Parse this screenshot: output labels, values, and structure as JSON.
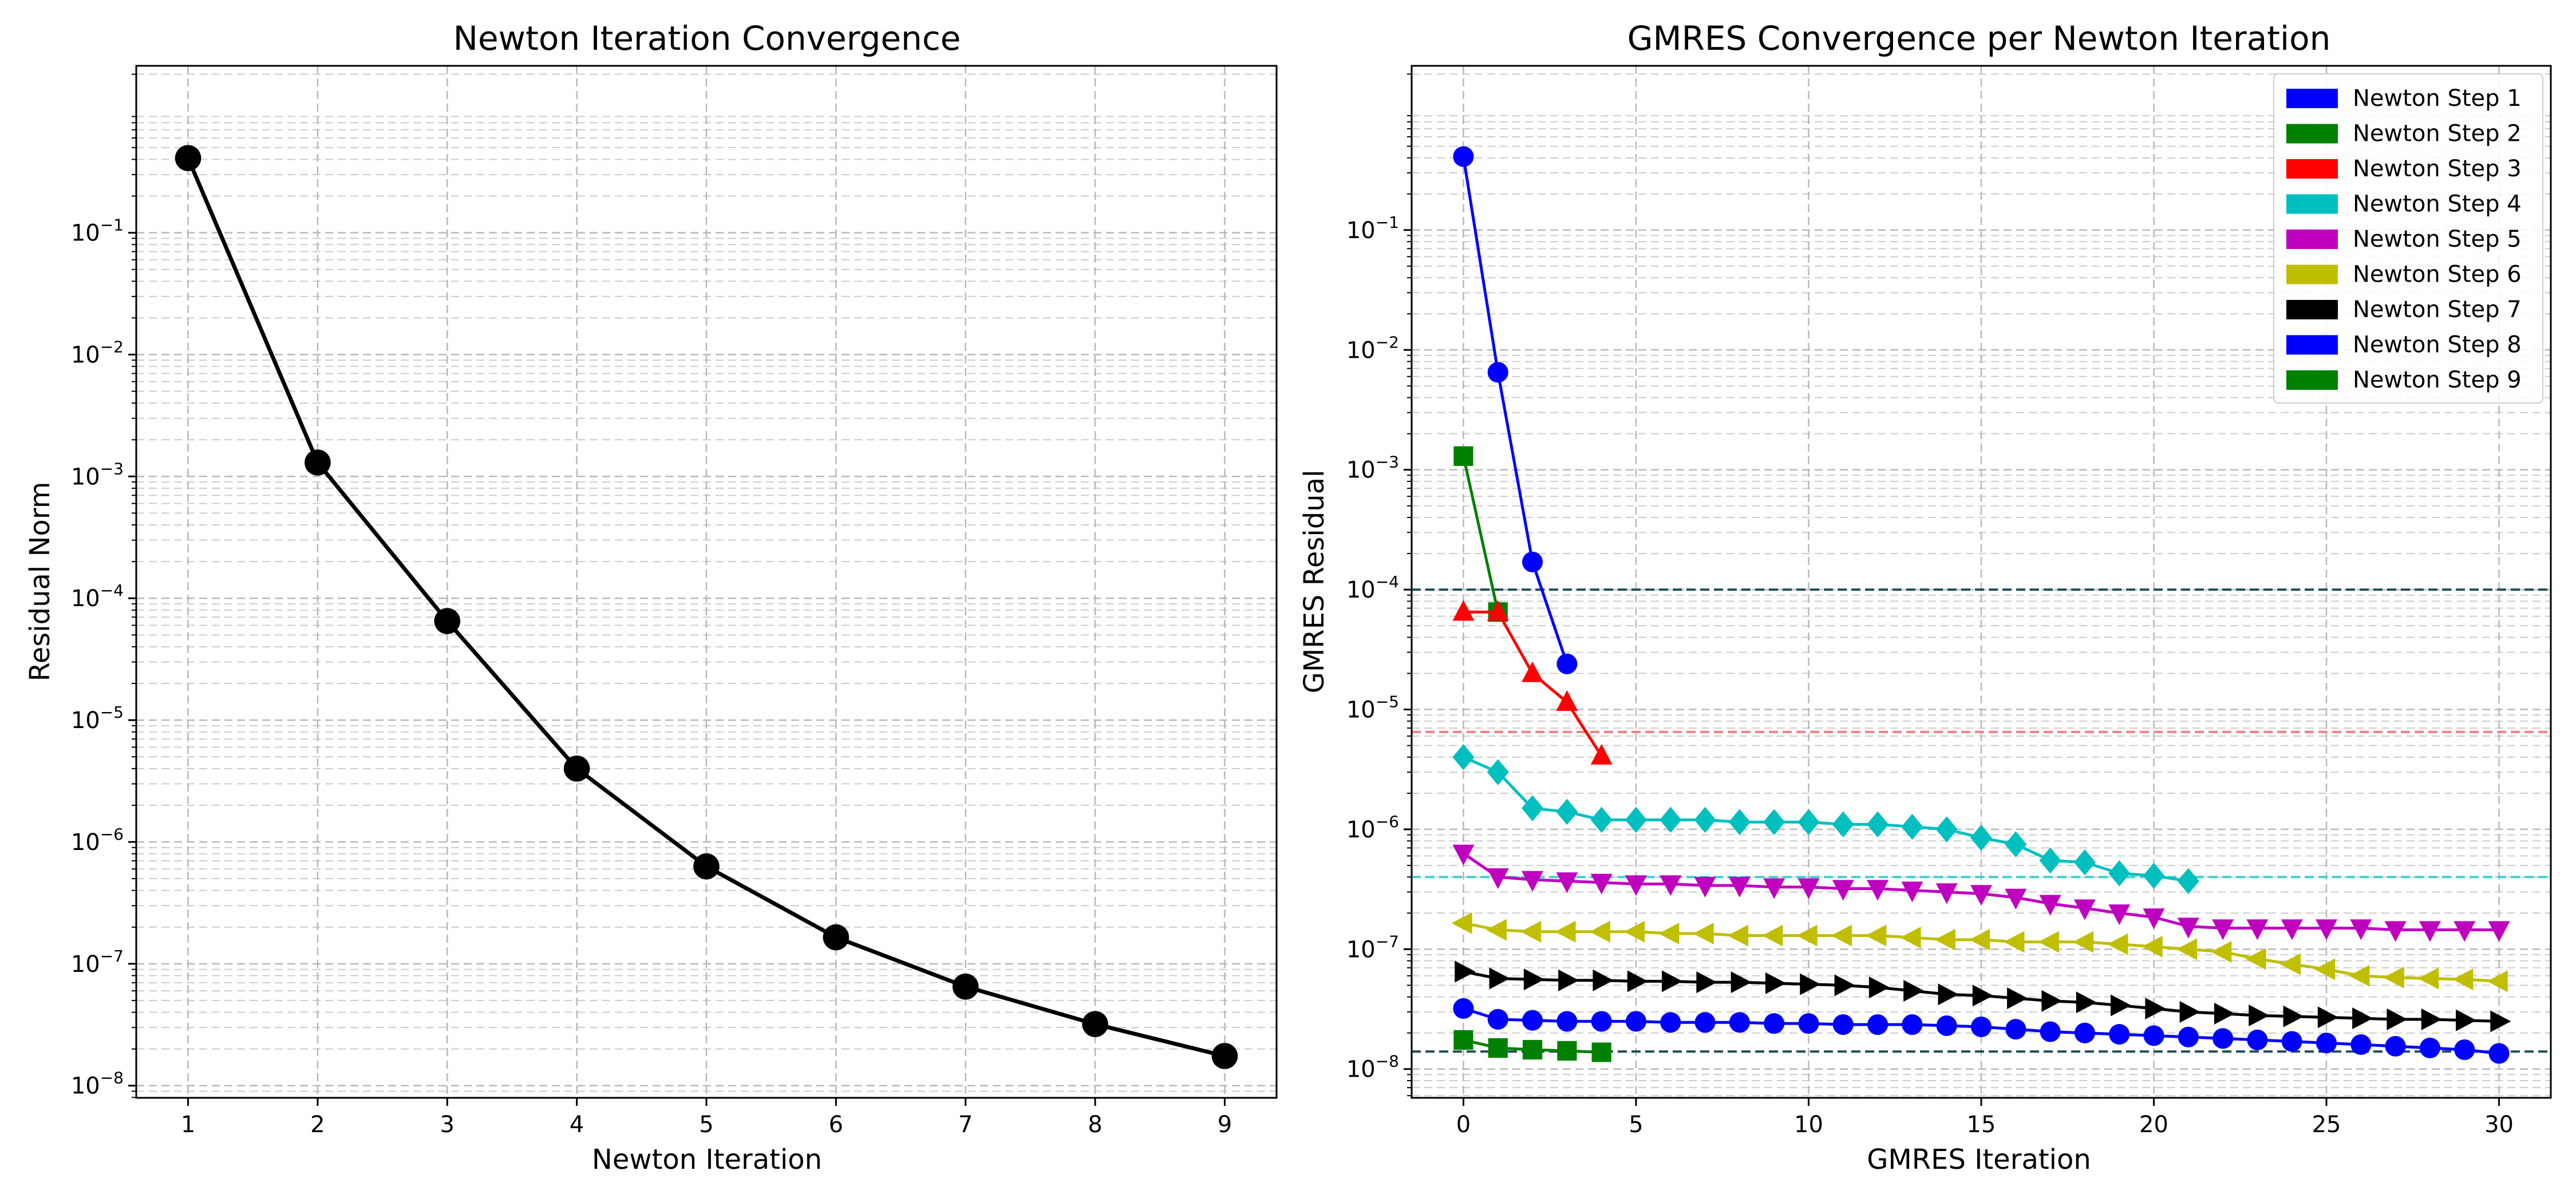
{
  "chart_data": [
    {
      "type": "line",
      "title": "Newton Iteration Convergence",
      "xlabel": "Newton Iteration",
      "ylabel": "Residual Norm",
      "xlim": [
        0.6,
        9.4
      ],
      "ylim_log10": [
        -8.1,
        0.37
      ],
      "yscale": "log",
      "grid": true,
      "x": [
        1,
        2,
        3,
        4,
        5,
        6,
        7,
        8,
        9
      ],
      "xticks": [
        1,
        2,
        3,
        4,
        5,
        6,
        7,
        8,
        9
      ],
      "yticks_exp": [
        -8,
        -7,
        -6,
        -5,
        -4,
        -3,
        -2,
        -1
      ],
      "series": [
        {
          "color": "#000000",
          "marker": "circle",
          "values": [
            0.41,
            0.0013,
            6.5e-05,
            4e-06,
            6.3e-07,
            1.65e-07,
            6.5e-08,
            3.2e-08,
            1.75e-08
          ]
        }
      ]
    },
    {
      "type": "line",
      "title": "GMRES Convergence per Newton Iteration",
      "xlabel": "GMRES Iteration",
      "ylabel": "GMRES Residual",
      "xlim": [
        -1.5,
        31.5
      ],
      "ylim_log10": [
        -8.24,
        0.37
      ],
      "yscale": "log",
      "grid": true,
      "legend": "top-right",
      "xticks": [
        0,
        5,
        10,
        15,
        20,
        25,
        30
      ],
      "yticks_exp": [
        -8,
        -7,
        -6,
        -5,
        -4,
        -3,
        -2,
        -1
      ],
      "hlines": [
        {
          "y": 0.0001,
          "color": "#1f4f55"
        },
        {
          "y": 6.5e-06,
          "color": "#f08080"
        },
        {
          "y": 4e-07,
          "color": "#40d0d0"
        },
        {
          "y": 1.4e-08,
          "color": "#1f4f55"
        }
      ],
      "series": [
        {
          "name": "Newton Step 1",
          "color": "#0000ff",
          "marker": "circle",
          "values": [
            0.41,
            0.0065,
            0.00017,
            2.4e-05
          ]
        },
        {
          "name": "Newton Step 2",
          "color": "#008000",
          "marker": "square",
          "values": [
            0.0013,
            6.5e-05
          ]
        },
        {
          "name": "Newton Step 3",
          "color": "#ff0000",
          "marker": "triangle-up",
          "values": [
            6.5e-05,
            6.5e-05,
            2e-05,
            1.15e-05,
            4.1e-06
          ]
        },
        {
          "name": "Newton Step 4",
          "color": "#00bfbf",
          "marker": "diamond",
          "values": [
            4e-06,
            3e-06,
            1.5e-06,
            1.4e-06,
            1.2e-06,
            1.2e-06,
            1.2e-06,
            1.2e-06,
            1.15e-06,
            1.15e-06,
            1.15e-06,
            1.1e-06,
            1.1e-06,
            1.05e-06,
            1e-06,
            8.5e-07,
            7.5e-07,
            5.5e-07,
            5.3e-07,
            4.3e-07,
            4.1e-07,
            3.7e-07
          ]
        },
        {
          "name": "Newton Step 5",
          "color": "#bf00bf",
          "marker": "triangle-down",
          "values": [
            6.3e-07,
            4e-07,
            3.8e-07,
            3.7e-07,
            3.6e-07,
            3.5e-07,
            3.5e-07,
            3.4e-07,
            3.4e-07,
            3.3e-07,
            3.3e-07,
            3.2e-07,
            3.2e-07,
            3.1e-07,
            3e-07,
            2.9e-07,
            2.7e-07,
            2.4e-07,
            2.2e-07,
            2e-07,
            1.85e-07,
            1.55e-07,
            1.5e-07,
            1.5e-07,
            1.5e-07,
            1.5e-07,
            1.5e-07,
            1.45e-07,
            1.45e-07,
            1.45e-07,
            1.45e-07
          ]
        },
        {
          "name": "Newton Step 6",
          "color": "#bfbf00",
          "marker": "triangle-left",
          "values": [
            1.65e-07,
            1.45e-07,
            1.4e-07,
            1.4e-07,
            1.4e-07,
            1.4e-07,
            1.35e-07,
            1.35e-07,
            1.3e-07,
            1.3e-07,
            1.3e-07,
            1.3e-07,
            1.3e-07,
            1.25e-07,
            1.2e-07,
            1.2e-07,
            1.15e-07,
            1.15e-07,
            1.15e-07,
            1.1e-07,
            1.05e-07,
            1e-07,
            9.5e-08,
            8.3e-08,
            7.5e-08,
            6.8e-08,
            6e-08,
            5.8e-08,
            5.7e-08,
            5.6e-08,
            5.4e-08
          ]
        },
        {
          "name": "Newton Step 7",
          "color": "#000000",
          "marker": "triangle-right",
          "values": [
            6.5e-08,
            5.7e-08,
            5.6e-08,
            5.5e-08,
            5.5e-08,
            5.4e-08,
            5.4e-08,
            5.3e-08,
            5.3e-08,
            5.2e-08,
            5.1e-08,
            5e-08,
            4.8e-08,
            4.5e-08,
            4.2e-08,
            4.1e-08,
            3.9e-08,
            3.7e-08,
            3.6e-08,
            3.4e-08,
            3.2e-08,
            3e-08,
            2.9e-08,
            2.8e-08,
            2.75e-08,
            2.7e-08,
            2.65e-08,
            2.6e-08,
            2.6e-08,
            2.55e-08,
            2.5e-08
          ]
        },
        {
          "name": "Newton Step 8",
          "color": "#0000ff",
          "marker": "circle",
          "values": [
            3.2e-08,
            2.6e-08,
            2.55e-08,
            2.5e-08,
            2.5e-08,
            2.5e-08,
            2.45e-08,
            2.45e-08,
            2.45e-08,
            2.4e-08,
            2.4e-08,
            2.35e-08,
            2.35e-08,
            2.35e-08,
            2.3e-08,
            2.25e-08,
            2.15e-08,
            2.05e-08,
            2e-08,
            1.95e-08,
            1.9e-08,
            1.85e-08,
            1.8e-08,
            1.75e-08,
            1.7e-08,
            1.65e-08,
            1.6e-08,
            1.55e-08,
            1.5e-08,
            1.45e-08,
            1.35e-08
          ]
        },
        {
          "name": "Newton Step 9",
          "color": "#008000",
          "marker": "square",
          "values": [
            1.75e-08,
            1.5e-08,
            1.45e-08,
            1.42e-08,
            1.38e-08
          ]
        }
      ]
    }
  ]
}
